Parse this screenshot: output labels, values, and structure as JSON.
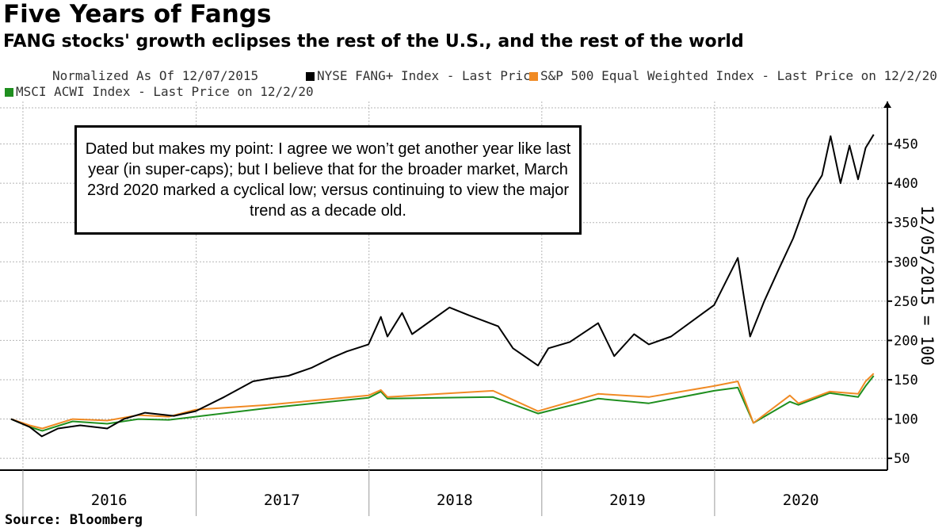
{
  "colors": {
    "fang": "#000000",
    "sp": "#f08a24",
    "msci": "#1f8f1f",
    "grid": "#b5b5b5"
  },
  "annotation": "Dated but makes my point: I agree we won’t get another year like last year (in super-caps); but I believe that for the broader market, March 23rd 2020 marked a cyclical low; versus continuing to view the major trend as a decade old.",
  "source": "Source: Bloomberg",
  "chart_data": {
    "type": "line",
    "title": "Five Years of Fangs",
    "subtitle": "FANG stocks' growth eclipses the rest of the U.S., and the rest of the world",
    "note": "Normalized As Of 12/07/2015",
    "ylabel": "12/05/2015 = 100",
    "ylim": [
      35,
      500
    ],
    "yticks": [
      50,
      100,
      150,
      200,
      250,
      300,
      350,
      400,
      450
    ],
    "xlim": [
      "2015-12-07",
      "2020-12-31"
    ],
    "xticks": [
      {
        "label": "2016",
        "date": "2016-07-01"
      },
      {
        "label": "2017",
        "date": "2017-07-01"
      },
      {
        "label": "2018",
        "date": "2018-07-01"
      },
      {
        "label": "2019",
        "date": "2019-07-01"
      },
      {
        "label": "2020",
        "date": "2020-07-01"
      }
    ],
    "year_boundaries": [
      "2016-01-01",
      "2017-01-01",
      "2018-01-01",
      "2019-01-01",
      "2020-01-01",
      "2021-01-01"
    ],
    "grid": true,
    "legend_position": "top",
    "series": [
      {
        "name": "NYSE FANG+ Index - Last Price",
        "color": "#000000",
        "points": [
          [
            "2015-12-07",
            100
          ],
          [
            "2016-01-15",
            90
          ],
          [
            "2016-02-10",
            78
          ],
          [
            "2016-03-15",
            88
          ],
          [
            "2016-05-01",
            92
          ],
          [
            "2016-06-27",
            88
          ],
          [
            "2016-08-01",
            100
          ],
          [
            "2016-09-15",
            108
          ],
          [
            "2016-11-15",
            104
          ],
          [
            "2016-12-31",
            110
          ],
          [
            "2017-03-01",
            128
          ],
          [
            "2017-05-01",
            148
          ],
          [
            "2017-06-09",
            152
          ],
          [
            "2017-07-15",
            155
          ],
          [
            "2017-09-01",
            165
          ],
          [
            "2017-10-15",
            178
          ],
          [
            "2017-11-15",
            186
          ],
          [
            "2017-12-31",
            195
          ],
          [
            "2018-01-26",
            230
          ],
          [
            "2018-02-09",
            205
          ],
          [
            "2018-03-12",
            235
          ],
          [
            "2018-04-02",
            208
          ],
          [
            "2018-06-20",
            242
          ],
          [
            "2018-07-31",
            232
          ],
          [
            "2018-10-01",
            218
          ],
          [
            "2018-11-01",
            190
          ],
          [
            "2018-12-24",
            168
          ],
          [
            "2019-01-15",
            190
          ],
          [
            "2019-03-01",
            198
          ],
          [
            "2019-04-30",
            222
          ],
          [
            "2019-06-03",
            180
          ],
          [
            "2019-07-15",
            208
          ],
          [
            "2019-08-15",
            195
          ],
          [
            "2019-10-01",
            205
          ],
          [
            "2019-12-31",
            245
          ],
          [
            "2020-02-19",
            305
          ],
          [
            "2020-03-16",
            205
          ],
          [
            "2020-04-15",
            250
          ],
          [
            "2020-05-15",
            290
          ],
          [
            "2020-06-15",
            330
          ],
          [
            "2020-07-15",
            380
          ],
          [
            "2020-08-15",
            410
          ],
          [
            "2020-09-02",
            460
          ],
          [
            "2020-09-23",
            400
          ],
          [
            "2020-10-12",
            448
          ],
          [
            "2020-10-30",
            405
          ],
          [
            "2020-11-15",
            445
          ],
          [
            "2020-12-02",
            462
          ]
        ]
      },
      {
        "name": "S&P 500 Equal Weighted Index - Last Price on 12/2/20",
        "color": "#f08a24",
        "points": [
          [
            "2015-12-07",
            100
          ],
          [
            "2016-01-15",
            92
          ],
          [
            "2016-02-11",
            88
          ],
          [
            "2016-04-15",
            100
          ],
          [
            "2016-06-27",
            98
          ],
          [
            "2016-09-01",
            105
          ],
          [
            "2016-11-04",
            103
          ],
          [
            "2016-12-31",
            112
          ],
          [
            "2017-06-01",
            118
          ],
          [
            "2017-12-31",
            130
          ],
          [
            "2018-01-26",
            137
          ],
          [
            "2018-02-09",
            128
          ],
          [
            "2018-06-01",
            132
          ],
          [
            "2018-09-20",
            136
          ],
          [
            "2018-12-24",
            110
          ],
          [
            "2019-04-30",
            132
          ],
          [
            "2019-08-15",
            128
          ],
          [
            "2019-12-31",
            142
          ],
          [
            "2020-02-19",
            148
          ],
          [
            "2020-03-23",
            95
          ],
          [
            "2020-06-08",
            130
          ],
          [
            "2020-06-26",
            120
          ],
          [
            "2020-08-31",
            135
          ],
          [
            "2020-10-30",
            132
          ],
          [
            "2020-11-15",
            148
          ],
          [
            "2020-12-02",
            158
          ]
        ]
      },
      {
        "name": "MSCI ACWI Index - Last Price on 12/2/20",
        "color": "#1f8f1f",
        "points": [
          [
            "2015-12-07",
            100
          ],
          [
            "2016-01-15",
            90
          ],
          [
            "2016-02-11",
            85
          ],
          [
            "2016-04-15",
            97
          ],
          [
            "2016-06-27",
            94
          ],
          [
            "2016-09-01",
            100
          ],
          [
            "2016-11-04",
            99
          ],
          [
            "2016-12-31",
            103
          ],
          [
            "2017-06-01",
            114
          ],
          [
            "2017-12-31",
            127
          ],
          [
            "2018-01-26",
            135
          ],
          [
            "2018-02-09",
            126
          ],
          [
            "2018-06-01",
            127
          ],
          [
            "2018-09-20",
            128
          ],
          [
            "2018-12-24",
            107
          ],
          [
            "2019-04-30",
            126
          ],
          [
            "2019-08-15",
            120
          ],
          [
            "2019-12-31",
            136
          ],
          [
            "2020-02-19",
            140
          ],
          [
            "2020-03-23",
            95
          ],
          [
            "2020-06-08",
            122
          ],
          [
            "2020-06-26",
            118
          ],
          [
            "2020-08-31",
            133
          ],
          [
            "2020-10-30",
            128
          ],
          [
            "2020-11-15",
            142
          ],
          [
            "2020-12-02",
            155
          ]
        ]
      }
    ]
  }
}
